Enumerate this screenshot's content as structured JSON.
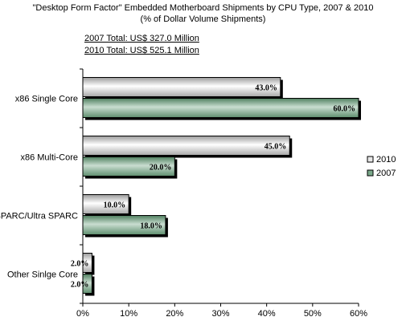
{
  "chart_data": {
    "type": "bar",
    "orientation": "horizontal",
    "title": "\"Desktop Form Factor\" Embedded Motherboard Shipments by CPU Type, 2007 & 2010",
    "subtitle": "(% of Dollar Volume Shipments)",
    "annotations": [
      "2007 Total: US$ 327.0 Million",
      "2010 Total: US$ 525.1 Million"
    ],
    "categories": [
      "x86 Single Core",
      "x86 Multi-Core",
      "SPARC/Ultra SPARC",
      "Other Sinlge Core"
    ],
    "series": [
      {
        "name": "2010",
        "values": [
          43.0,
          45.0,
          10.0,
          2.0
        ],
        "labels": [
          "43.0%",
          "45.0%",
          "10.0%",
          "2.0%"
        ],
        "color": "#e0e0e0"
      },
      {
        "name": "2007",
        "values": [
          60.0,
          20.0,
          18.0,
          2.0
        ],
        "labels": [
          "60.0%",
          "20.0%",
          "18.0%",
          "2.0%"
        ],
        "color": "#6fa07f"
      }
    ],
    "xlim": [
      0,
      60
    ],
    "x_ticks": [
      "0%",
      "10%",
      "20%",
      "30%",
      "40%",
      "50%",
      "60%"
    ],
    "legend_position": "right",
    "grid": false
  }
}
